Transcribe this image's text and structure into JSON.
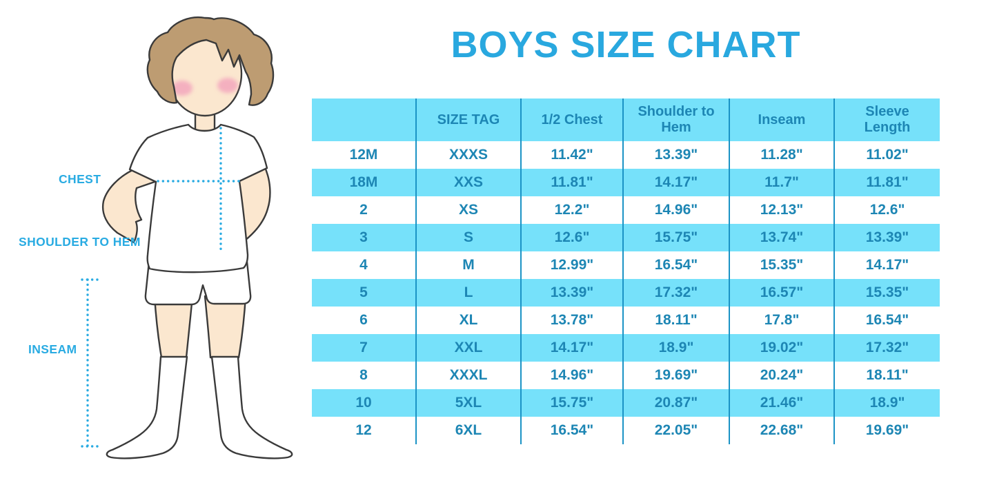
{
  "title": "BOYS SIZE CHART",
  "figure_labels": {
    "chest": "CHEST",
    "shoulder_to_hem": "SHOULDER TO HEM",
    "inseam": "INSEAM"
  },
  "chart_data": {
    "type": "table",
    "title": "BOYS SIZE CHART",
    "columns": [
      "",
      "SIZE TAG",
      "1/2 Chest",
      "Shoulder to Hem",
      "Inseam",
      "Sleeve Length"
    ],
    "rows": [
      [
        "12M",
        "XXXS",
        "11.42\"",
        "13.39\"",
        "11.28\"",
        "11.02\""
      ],
      [
        "18M",
        "XXS",
        "11.81\"",
        "14.17\"",
        "11.7\"",
        "11.81\""
      ],
      [
        "2",
        "XS",
        "12.2\"",
        "14.96\"",
        "12.13\"",
        "12.6\""
      ],
      [
        "3",
        "S",
        "12.6\"",
        "15.75\"",
        "13.74\"",
        "13.39\""
      ],
      [
        "4",
        "M",
        "12.99\"",
        "16.54\"",
        "15.35\"",
        "14.17\""
      ],
      [
        "5",
        "L",
        "13.39\"",
        "17.32\"",
        "16.57\"",
        "15.35\""
      ],
      [
        "6",
        "XL",
        "13.78\"",
        "18.11\"",
        "17.8\"",
        "16.54\""
      ],
      [
        "7",
        "XXL",
        "14.17\"",
        "18.9\"",
        "19.02\"",
        "17.32\""
      ],
      [
        "8",
        "XXXL",
        "14.96\"",
        "19.69\"",
        "20.24\"",
        "18.11\""
      ],
      [
        "10",
        "5XL",
        "15.75\"",
        "20.87\"",
        "21.46\"",
        "18.9\""
      ],
      [
        "12",
        "6XL",
        "16.54\"",
        "22.05\"",
        "22.68\"",
        "19.69\""
      ]
    ],
    "layout": {
      "striped_rows": true,
      "stripe_pattern": "header and every second body row light blue",
      "grid": "vertical column separators only"
    }
  },
  "colors": {
    "accent_cyan": "#29abe2",
    "title_cyan": "#29a8df",
    "row_stripe": "#76e1fa",
    "table_text": "#1d86b4",
    "column_divider": "#1b93c5",
    "hair": "#bd9c72",
    "skin": "#fbe7cf",
    "blush": "#f2a3bb",
    "outline": "#3a3a3a"
  }
}
